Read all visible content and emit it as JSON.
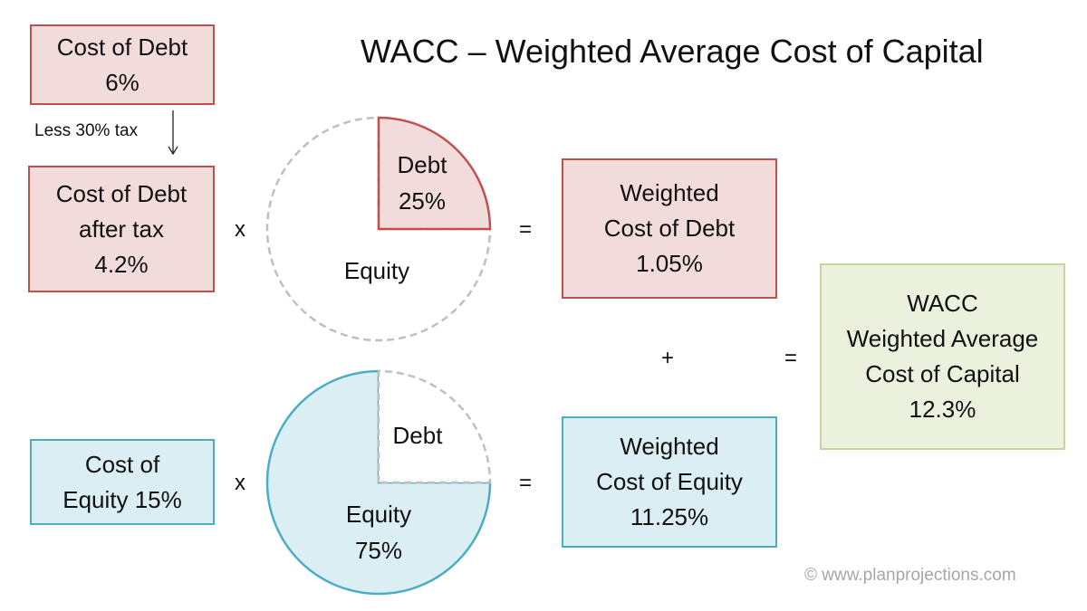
{
  "title": "WACC – Weighted Average Cost of Capital",
  "debt": {
    "cost_box": {
      "line1": "Cost of Debt",
      "line2": "6%"
    },
    "tax_note": "Less 30% tax",
    "after_tax_box": {
      "line1": "Cost of Debt",
      "line2": "after tax",
      "line3": "4.2%"
    },
    "weighted_box": {
      "line1": "Weighted",
      "line2": "Cost of Debt",
      "line3": "1.05%"
    }
  },
  "equity": {
    "cost_box": {
      "line1": "Cost of",
      "line2": "Equity 15%"
    },
    "weighted_box": {
      "line1": "Weighted",
      "line2": "Cost of Equity",
      "line3": "11.25%"
    }
  },
  "wacc_box": {
    "line1": "WACC",
    "line2": "Weighted Average",
    "line3": "Cost of Capital",
    "line4": "12.3%"
  },
  "operators": {
    "multiply": "x",
    "equals": "=",
    "plus": "+"
  },
  "pie_debt_highlight": {
    "highlight": "debt",
    "debt_share": 0.25,
    "debt_label": "Debt",
    "debt_value": "25%",
    "equity_label": "Equity"
  },
  "pie_equity_highlight": {
    "highlight": "equity",
    "debt_share": 0.25,
    "debt_label": "Debt",
    "equity_label": "Equity",
    "equity_value": "75%"
  },
  "colors": {
    "debt_fill": "#f2dcdb",
    "debt_stroke": "#c0504d",
    "equity_fill": "#daeef3",
    "equity_stroke": "#4bacc6",
    "wacc_fill": "#ebf1dd",
    "wacc_stroke": "#c3d69b",
    "dashed_outline": "#bfbfbf"
  },
  "credit": "© www.planprojections.com"
}
